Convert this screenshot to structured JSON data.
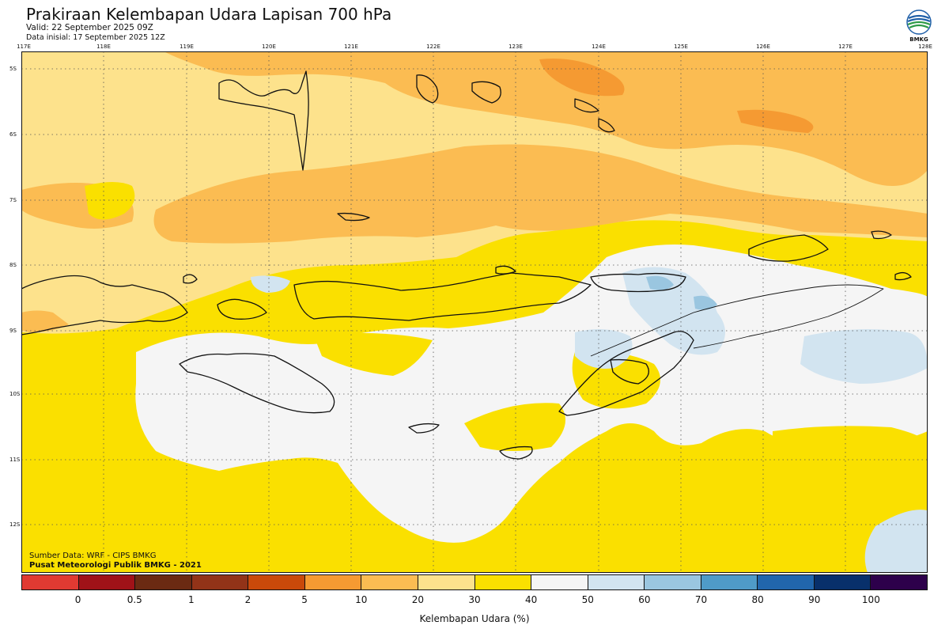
{
  "header": {
    "title": "Prakiraan Kelembapan Udara Lapisan 700 hPa",
    "valid": "Valid: 22 September 2025 09Z",
    "initial": "Data inisial: 17 September 2025 12Z"
  },
  "logo": {
    "text": "BMKG",
    "icon": "bmkg-logo-icon"
  },
  "axes": {
    "lon_labels": [
      "117E",
      "118E",
      "119E",
      "120E",
      "121E",
      "122E",
      "123E",
      "124E",
      "125E",
      "126E",
      "127E",
      "128E"
    ],
    "lat_labels": [
      "5S",
      "6S",
      "7S",
      "8S",
      "9S",
      "10S",
      "11S",
      "12S"
    ],
    "lon_range": [
      117,
      128
    ],
    "lat_range": [
      -4.8,
      -12.8
    ],
    "grid": "dotted"
  },
  "credits": {
    "source": "Sumber Data: WRF - CIPS BMKG",
    "org": "Pusat Meteorologi Publik BMKG - 2021"
  },
  "colorbar": {
    "title": "Kelembapan Udara (%)",
    "labels": [
      "0",
      "0.5",
      "1",
      "2",
      "5",
      "10",
      "20",
      "30",
      "40",
      "50",
      "60",
      "70",
      "80",
      "90",
      "100"
    ],
    "colors": [
      "#e03a32",
      "#a01218",
      "#6b2a12",
      "#923318",
      "#c9490a",
      "#f59a32",
      "#fbbc52",
      "#fde28c",
      "#fae000",
      "#f5f5f5",
      "#d2e4f0",
      "#9ac6e0",
      "#4f9bc8",
      "#2166ac",
      "#08306b",
      "#2d004b"
    ]
  },
  "map": {
    "levels": {
      "10-20": "#fbbc52",
      "0-10": "#f59a32",
      "20-30": "#fde28c",
      "30-40": "#fae000",
      "40-50": "#f5f5f5",
      "50-60": "#d2e4f0",
      "60-70": "#9ac6e0"
    },
    "regions": [
      "Sulawesi",
      "Flores",
      "Sumba",
      "Timor",
      "Alor",
      "Wetar",
      "Sumbawa"
    ]
  }
}
